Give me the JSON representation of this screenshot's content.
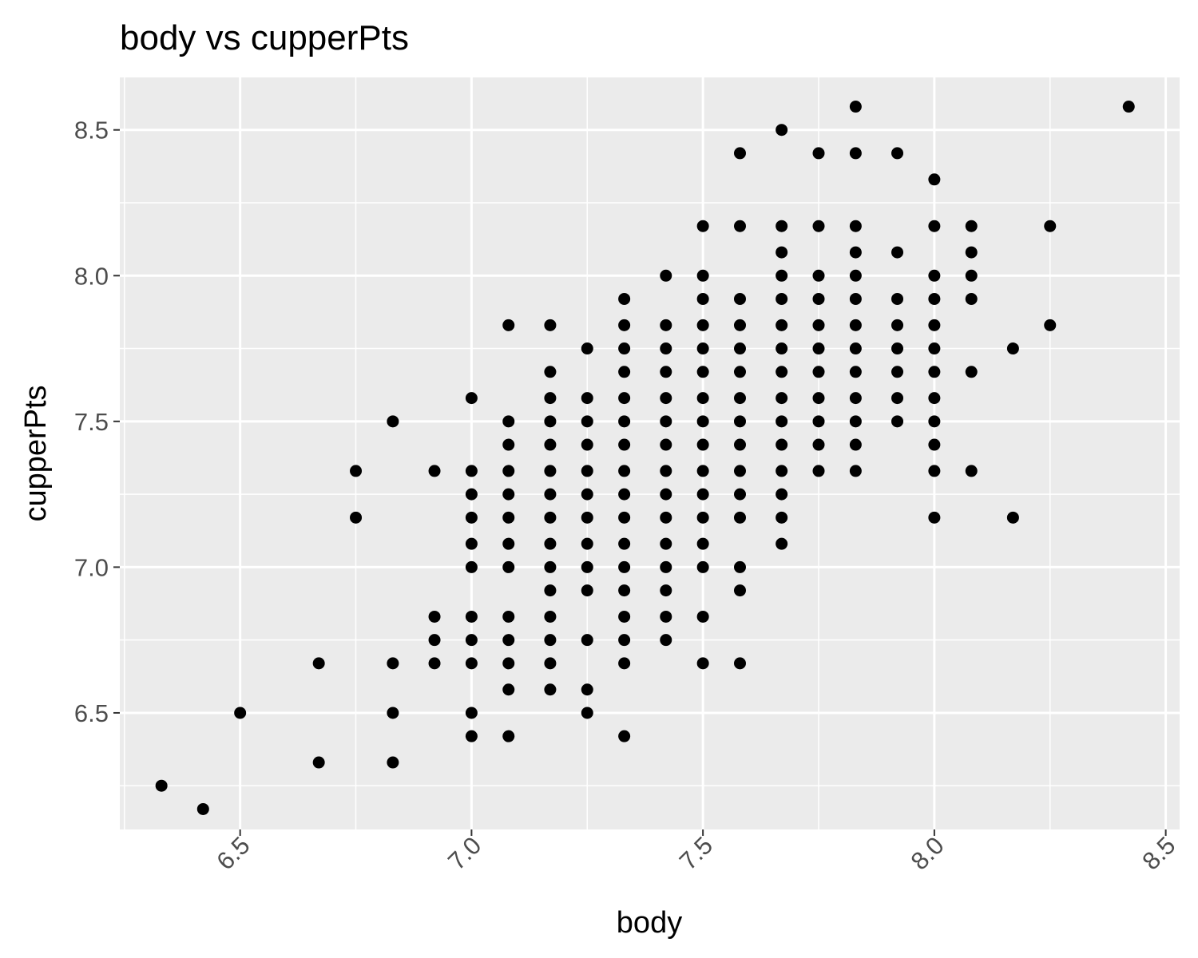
{
  "chart_data": {
    "type": "scatter",
    "title": "body vs cupperPts",
    "xlabel": "body",
    "ylabel": "cupperPts",
    "xlim": [
      6.24,
      8.53
    ],
    "ylim": [
      6.1,
      8.68
    ],
    "xticks": [
      "6.5",
      "7.0",
      "7.5",
      "8.0",
      "8.5"
    ],
    "yticks": [
      "6.5",
      "7.0",
      "7.5",
      "8.0",
      "8.5"
    ],
    "grid": true,
    "colors": {
      "panel": "#ebebeb",
      "grid": "#ffffff",
      "point": "#000000",
      "tick_text": "#4d4d4d"
    },
    "points": [
      [
        6.33,
        6.25
      ],
      [
        6.42,
        6.17
      ],
      [
        6.5,
        6.5
      ],
      [
        6.67,
        6.67
      ],
      [
        6.67,
        6.33
      ],
      [
        6.75,
        7.33
      ],
      [
        6.75,
        7.17
      ],
      [
        6.83,
        7.5
      ],
      [
        6.83,
        6.67
      ],
      [
        6.83,
        6.5
      ],
      [
        6.83,
        6.33
      ],
      [
        6.92,
        7.33
      ],
      [
        6.92,
        6.83
      ],
      [
        6.92,
        6.75
      ],
      [
        6.92,
        6.67
      ],
      [
        7.0,
        7.58
      ],
      [
        7.0,
        7.33
      ],
      [
        7.0,
        7.25
      ],
      [
        7.0,
        7.17
      ],
      [
        7.0,
        7.08
      ],
      [
        7.0,
        7.0
      ],
      [
        7.0,
        6.83
      ],
      [
        7.0,
        6.75
      ],
      [
        7.0,
        6.67
      ],
      [
        7.0,
        6.5
      ],
      [
        7.0,
        6.42
      ],
      [
        7.08,
        7.83
      ],
      [
        7.08,
        7.5
      ],
      [
        7.08,
        7.42
      ],
      [
        7.08,
        7.33
      ],
      [
        7.08,
        7.25
      ],
      [
        7.08,
        7.17
      ],
      [
        7.08,
        7.08
      ],
      [
        7.08,
        7.0
      ],
      [
        7.08,
        6.83
      ],
      [
        7.08,
        6.75
      ],
      [
        7.08,
        6.67
      ],
      [
        7.08,
        6.58
      ],
      [
        7.08,
        6.42
      ],
      [
        7.17,
        7.83
      ],
      [
        7.17,
        7.67
      ],
      [
        7.17,
        7.58
      ],
      [
        7.17,
        7.5
      ],
      [
        7.17,
        7.42
      ],
      [
        7.17,
        7.33
      ],
      [
        7.17,
        7.25
      ],
      [
        7.17,
        7.17
      ],
      [
        7.17,
        7.08
      ],
      [
        7.17,
        7.0
      ],
      [
        7.17,
        6.92
      ],
      [
        7.17,
        6.83
      ],
      [
        7.17,
        6.75
      ],
      [
        7.17,
        6.67
      ],
      [
        7.17,
        6.58
      ],
      [
        7.25,
        7.75
      ],
      [
        7.25,
        7.58
      ],
      [
        7.25,
        7.5
      ],
      [
        7.25,
        7.42
      ],
      [
        7.25,
        7.33
      ],
      [
        7.25,
        7.25
      ],
      [
        7.25,
        7.17
      ],
      [
        7.25,
        7.08
      ],
      [
        7.25,
        7.0
      ],
      [
        7.25,
        6.92
      ],
      [
        7.25,
        6.75
      ],
      [
        7.25,
        6.58
      ],
      [
        7.25,
        6.5
      ],
      [
        7.33,
        7.92
      ],
      [
        7.33,
        7.83
      ],
      [
        7.33,
        7.75
      ],
      [
        7.33,
        7.67
      ],
      [
        7.33,
        7.58
      ],
      [
        7.33,
        7.5
      ],
      [
        7.33,
        7.42
      ],
      [
        7.33,
        7.33
      ],
      [
        7.33,
        7.25
      ],
      [
        7.33,
        7.17
      ],
      [
        7.33,
        7.08
      ],
      [
        7.33,
        7.0
      ],
      [
        7.33,
        6.92
      ],
      [
        7.33,
        6.83
      ],
      [
        7.33,
        6.75
      ],
      [
        7.33,
        6.67
      ],
      [
        7.33,
        6.42
      ],
      [
        7.42,
        8.0
      ],
      [
        7.42,
        7.83
      ],
      [
        7.42,
        7.75
      ],
      [
        7.42,
        7.67
      ],
      [
        7.42,
        7.58
      ],
      [
        7.42,
        7.5
      ],
      [
        7.42,
        7.42
      ],
      [
        7.42,
        7.33
      ],
      [
        7.42,
        7.25
      ],
      [
        7.42,
        7.17
      ],
      [
        7.42,
        7.08
      ],
      [
        7.42,
        7.0
      ],
      [
        7.42,
        6.92
      ],
      [
        7.42,
        6.83
      ],
      [
        7.42,
        6.75
      ],
      [
        7.5,
        8.17
      ],
      [
        7.5,
        8.0
      ],
      [
        7.5,
        7.92
      ],
      [
        7.5,
        7.83
      ],
      [
        7.5,
        7.75
      ],
      [
        7.5,
        7.67
      ],
      [
        7.5,
        7.58
      ],
      [
        7.5,
        7.5
      ],
      [
        7.5,
        7.42
      ],
      [
        7.5,
        7.33
      ],
      [
        7.5,
        7.25
      ],
      [
        7.5,
        7.17
      ],
      [
        7.5,
        7.08
      ],
      [
        7.5,
        7.0
      ],
      [
        7.5,
        6.83
      ],
      [
        7.5,
        6.67
      ],
      [
        7.58,
        8.42
      ],
      [
        7.58,
        8.17
      ],
      [
        7.58,
        7.92
      ],
      [
        7.58,
        7.83
      ],
      [
        7.58,
        7.75
      ],
      [
        7.58,
        7.67
      ],
      [
        7.58,
        7.58
      ],
      [
        7.58,
        7.5
      ],
      [
        7.58,
        7.42
      ],
      [
        7.58,
        7.33
      ],
      [
        7.58,
        7.25
      ],
      [
        7.58,
        7.17
      ],
      [
        7.58,
        7.0
      ],
      [
        7.58,
        6.92
      ],
      [
        7.58,
        6.67
      ],
      [
        7.67,
        8.5
      ],
      [
        7.67,
        8.17
      ],
      [
        7.67,
        8.08
      ],
      [
        7.67,
        8.0
      ],
      [
        7.67,
        7.92
      ],
      [
        7.67,
        7.83
      ],
      [
        7.67,
        7.75
      ],
      [
        7.67,
        7.67
      ],
      [
        7.67,
        7.58
      ],
      [
        7.67,
        7.5
      ],
      [
        7.67,
        7.42
      ],
      [
        7.67,
        7.33
      ],
      [
        7.67,
        7.25
      ],
      [
        7.67,
        7.17
      ],
      [
        7.67,
        7.08
      ],
      [
        7.75,
        8.42
      ],
      [
        7.75,
        8.17
      ],
      [
        7.75,
        8.0
      ],
      [
        7.75,
        7.92
      ],
      [
        7.75,
        7.83
      ],
      [
        7.75,
        7.75
      ],
      [
        7.75,
        7.67
      ],
      [
        7.75,
        7.58
      ],
      [
        7.75,
        7.5
      ],
      [
        7.75,
        7.42
      ],
      [
        7.75,
        7.33
      ],
      [
        7.83,
        8.58
      ],
      [
        7.83,
        8.42
      ],
      [
        7.83,
        8.17
      ],
      [
        7.83,
        8.08
      ],
      [
        7.83,
        8.0
      ],
      [
        7.83,
        7.92
      ],
      [
        7.83,
        7.83
      ],
      [
        7.83,
        7.75
      ],
      [
        7.83,
        7.67
      ],
      [
        7.83,
        7.58
      ],
      [
        7.83,
        7.5
      ],
      [
        7.83,
        7.42
      ],
      [
        7.83,
        7.33
      ],
      [
        7.92,
        8.42
      ],
      [
        7.92,
        8.08
      ],
      [
        7.92,
        7.92
      ],
      [
        7.92,
        7.83
      ],
      [
        7.92,
        7.75
      ],
      [
        7.92,
        7.67
      ],
      [
        7.92,
        7.58
      ],
      [
        7.92,
        7.5
      ],
      [
        8.0,
        8.33
      ],
      [
        8.0,
        8.17
      ],
      [
        8.0,
        8.0
      ],
      [
        8.0,
        7.92
      ],
      [
        8.0,
        7.83
      ],
      [
        8.0,
        7.75
      ],
      [
        8.0,
        7.67
      ],
      [
        8.0,
        7.58
      ],
      [
        8.0,
        7.5
      ],
      [
        8.0,
        7.42
      ],
      [
        8.0,
        7.33
      ],
      [
        8.0,
        7.17
      ],
      [
        8.08,
        8.17
      ],
      [
        8.08,
        8.08
      ],
      [
        8.08,
        8.0
      ],
      [
        8.08,
        7.92
      ],
      [
        8.08,
        7.67
      ],
      [
        8.08,
        7.33
      ],
      [
        8.17,
        7.75
      ],
      [
        8.17,
        7.17
      ],
      [
        8.25,
        8.17
      ],
      [
        8.25,
        7.83
      ],
      [
        8.42,
        8.58
      ]
    ]
  }
}
